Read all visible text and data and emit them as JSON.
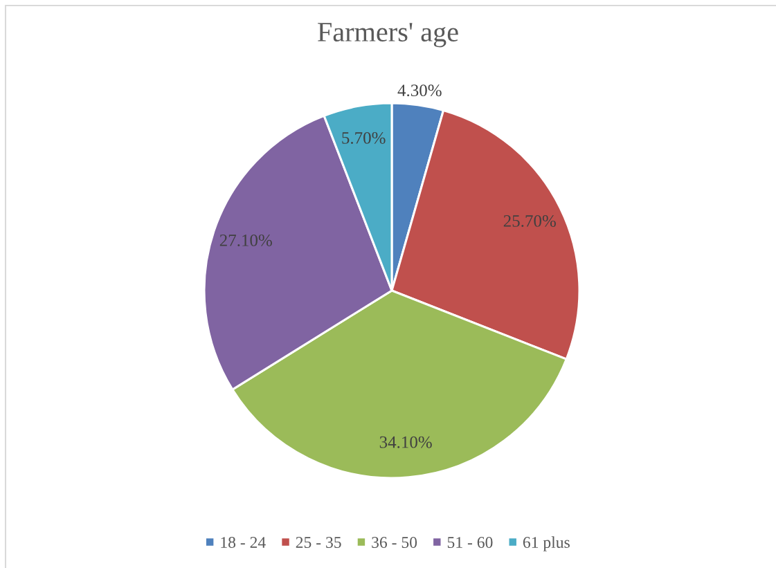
{
  "chart_data": {
    "type": "pie",
    "title": "Farmers' age",
    "categories": [
      "18 - 24",
      "25 - 35",
      "36 - 50",
      "51 - 60",
      "61 plus"
    ],
    "values": [
      4.3,
      25.7,
      34.1,
      27.1,
      5.7
    ],
    "colors": [
      "#4f81bd",
      "#c0504d",
      "#9bbb59",
      "#8064a2",
      "#4bacc6"
    ],
    "value_labels": [
      "4.30%",
      "25.70%",
      "34.10%",
      "27.10%",
      "5.70%"
    ],
    "legend": "bottom"
  }
}
